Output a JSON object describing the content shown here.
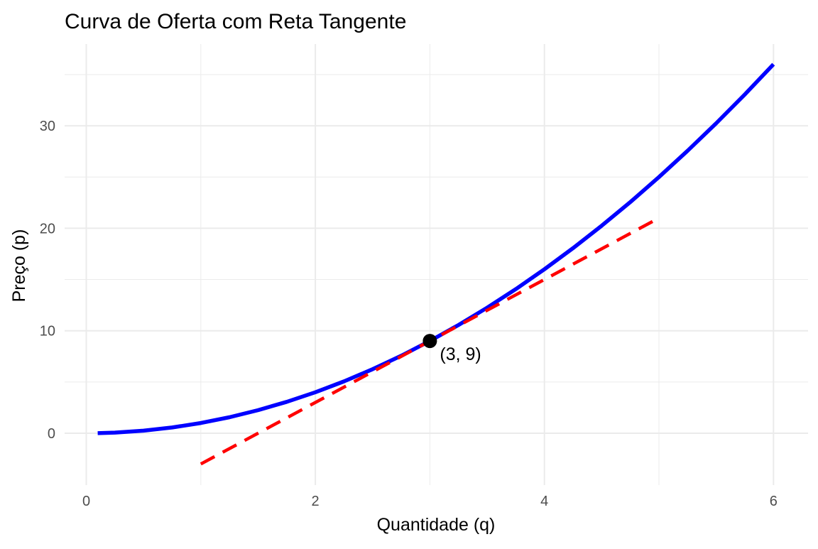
{
  "chart_data": {
    "type": "line",
    "title": "Curva de Oferta com Reta Tangente",
    "xlabel": "Quantidade (q)",
    "ylabel": "Preço (p)",
    "xlim": [
      -0.05,
      6.2
    ],
    "ylim": [
      -5,
      38
    ],
    "x_ticks": [
      0,
      2,
      4,
      6
    ],
    "x_tick_labels": [
      "0",
      "2",
      "4",
      "6"
    ],
    "x_minor_ticks": [
      1,
      3,
      5
    ],
    "y_ticks": [
      0,
      10,
      20,
      30
    ],
    "y_tick_labels": [
      "0",
      "10",
      "20",
      "30"
    ],
    "y_minor_ticks": [
      5,
      15,
      25,
      35
    ],
    "grid": true,
    "legend": "none",
    "series": [
      {
        "kind": "curve",
        "color": "#0000ff",
        "style": "solid",
        "x": [
          0.1,
          0.25,
          0.5,
          0.75,
          1.0,
          1.25,
          1.5,
          1.75,
          2.0,
          2.25,
          2.5,
          2.75,
          3.0,
          3.25,
          3.5,
          3.75,
          4.0,
          4.25,
          4.5,
          4.75,
          5.0,
          5.25,
          5.5,
          5.75,
          6.0
        ],
        "y": [
          0.01,
          0.06,
          0.25,
          0.56,
          1.0,
          1.56,
          2.25,
          3.06,
          4.0,
          5.06,
          6.25,
          7.56,
          9.0,
          10.56,
          12.25,
          14.06,
          16.0,
          18.06,
          20.25,
          22.56,
          25.0,
          27.56,
          30.25,
          33.06,
          36.0
        ]
      },
      {
        "kind": "tangent",
        "color": "#ff0000",
        "style": "dashed",
        "x": [
          1,
          5
        ],
        "y": [
          -3,
          21
        ]
      }
    ],
    "points": [
      {
        "x": 3,
        "y": 9,
        "color": "#000000",
        "label": "(3, 9)"
      }
    ]
  }
}
